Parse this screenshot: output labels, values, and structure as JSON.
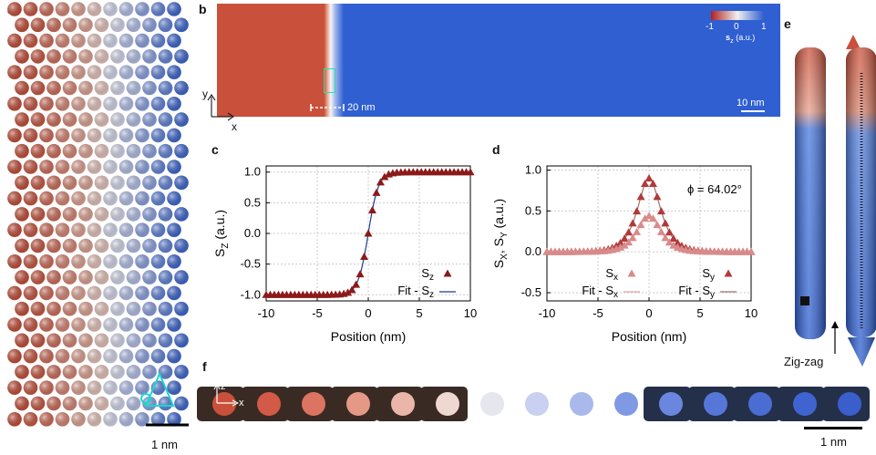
{
  "panel_labels": {
    "a": "a",
    "b": "b",
    "c": "c",
    "d": "d",
    "e": "e",
    "f": "f"
  },
  "scale_bars": {
    "a": "1 nm",
    "b_scale": "10 nm",
    "b_offset": "20 nm",
    "f": "1 nm"
  },
  "colorbar": {
    "min": "-1",
    "mid": "0",
    "max": "1",
    "label": "s",
    "label_sub": "z",
    "label_unit": " (a.u.)"
  },
  "axes_b": {
    "y": "y",
    "x": "x"
  },
  "axes_f": {
    "z": "z",
    "x": "x"
  },
  "panel_e": {
    "caption": "Zig-zag"
  },
  "colors": {
    "red": "#c9503a",
    "blue": "#2f5fd0",
    "darkred": "#8b1a1a",
    "pink": "#d98a8a",
    "navy": "#1f3a93"
  },
  "chart_data": [
    {
      "id": "c",
      "type": "scatter",
      "xlabel": "Position (nm)",
      "ylabel": "S",
      "ylabel_sub": "Z",
      "ylabel_unit": " (a.u.)",
      "xlim": [
        -10,
        10
      ],
      "ylim": [
        -1.1,
        1.1
      ],
      "xticks": [
        -10,
        -5,
        0,
        5,
        10
      ],
      "yticks": [
        -1.0,
        -0.5,
        0.0,
        0.5,
        1.0
      ],
      "ytick_labels": [
        "-1.0",
        "-0.5",
        "0.0",
        "0.5",
        "1.0"
      ],
      "grid": true,
      "legend": "bottom-right",
      "series": [
        {
          "name": "S",
          "name_sub": "z",
          "kind": "points",
          "marker": "triangle",
          "color": "#8b1a1a"
        },
        {
          "name": "Fit - S",
          "name_sub": "z",
          "kind": "line",
          "color": "#1f3a93"
        }
      ],
      "model": {
        "form": "tanh",
        "amplitude": 1.0,
        "width_nm": 1.0
      }
    },
    {
      "id": "d",
      "type": "scatter",
      "xlabel": "Position (nm)",
      "ylabel": "S",
      "ylabel_sub": "X",
      "ylabel_mid": ", S",
      "ylabel_sub2": "Y",
      "ylabel_unit": " (a.u.)",
      "xlim": [
        -10,
        10
      ],
      "ylim": [
        -0.6,
        1.05
      ],
      "xticks": [
        -10,
        -5,
        0,
        5,
        10
      ],
      "yticks": [
        -0.5,
        0.0,
        0.5,
        1.0
      ],
      "ytick_labels": [
        "-0.5",
        "0.0",
        "0.5",
        "1.0"
      ],
      "grid": true,
      "legend": "bottom",
      "annotation": "ϕ = 64.02°",
      "series": [
        {
          "name": "S",
          "name_sub": "x",
          "kind": "points",
          "marker": "triangle",
          "color": "#d98a8a",
          "peak": 0.44
        },
        {
          "name": "S",
          "name_sub": "y",
          "kind": "points",
          "marker": "triangle",
          "color": "#b03a3a",
          "peak": 0.9
        },
        {
          "name": "Fit - S",
          "name_sub": "x",
          "kind": "line",
          "color": "#e0a8a8"
        },
        {
          "name": "Fit - S",
          "name_sub": "y",
          "kind": "line",
          "color": "#a07070"
        }
      ],
      "model": {
        "form": "sech",
        "width_nm": 1.0
      }
    }
  ]
}
